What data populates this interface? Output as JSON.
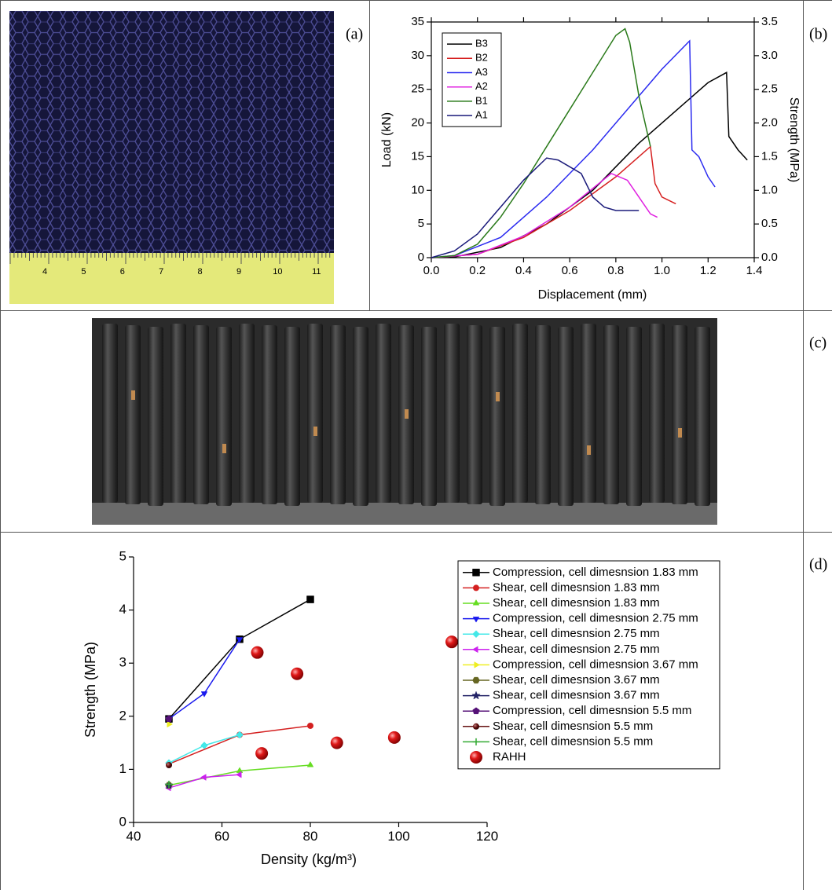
{
  "panel_labels": [
    "(a)",
    "(b)",
    "(c)",
    "(d)"
  ],
  "ruler_labels": [
    "4",
    "5",
    "6",
    "7",
    "8",
    "9",
    "10",
    "11"
  ],
  "chart_data": [
    {
      "type": "line",
      "xlabel": "Displacement (mm)",
      "ylabel": "Load (kN)",
      "y2label": "Strength (MPa)",
      "xlim": [
        0,
        1.4
      ],
      "xticks": [
        {
          "value": 0,
          "label": "0.0"
        },
        0.2,
        0.4,
        0.6,
        0.8,
        {
          "value": 1,
          "label": "1.0"
        },
        1.2,
        1.4
      ],
      "ylim": [
        0,
        35
      ],
      "yticks": [
        0,
        5,
        10,
        15,
        20,
        25,
        30,
        35
      ],
      "y2lim": [
        0,
        3.5
      ],
      "y2ticks": [
        {
          "value": 0,
          "label": "0.0"
        },
        0.5,
        {
          "value": 1,
          "label": "1.0"
        },
        1.5,
        {
          "value": 2,
          "label": "2.0"
        },
        2.5,
        {
          "value": 3,
          "label": "3.0"
        },
        3.5
      ],
      "box": true,
      "legend": "upper left",
      "series": [
        {
          "name": "B3",
          "color": "#000000",
          "x": [
            0,
            0.1,
            0.3,
            0.5,
            0.7,
            0.9,
            1.0,
            1.1,
            1.2,
            1.28,
            1.29,
            1.33,
            1.37
          ],
          "values": [
            0,
            0.1,
            1.5,
            5,
            10,
            17,
            20,
            23,
            26,
            27.5,
            18,
            16,
            14.5
          ]
        },
        {
          "name": "B2",
          "color": "#d62020",
          "x": [
            0,
            0.2,
            0.4,
            0.6,
            0.8,
            0.9,
            0.95,
            0.97,
            1.0,
            1.06
          ],
          "values": [
            0,
            0.5,
            3,
            7,
            12,
            15,
            16.5,
            11,
            9,
            8
          ]
        },
        {
          "name": "A3",
          "color": "#2a2af0",
          "x": [
            0,
            0.1,
            0.3,
            0.5,
            0.7,
            0.9,
            1.0,
            1.1,
            1.12,
            1.13,
            1.16,
            1.2,
            1.23
          ],
          "values": [
            0,
            0.3,
            3,
            9,
            16,
            24,
            28,
            31.5,
            32.2,
            16,
            15,
            12,
            10.5
          ]
        },
        {
          "name": "A2",
          "color": "#e020e0",
          "x": [
            0,
            0.2,
            0.4,
            0.6,
            0.78,
            0.85,
            0.9,
            0.95,
            0.98
          ],
          "values": [
            0,
            0.5,
            3.2,
            7.5,
            12.5,
            11.5,
            9,
            6.5,
            6
          ]
        },
        {
          "name": "B1",
          "color": "#2a7a1a",
          "x": [
            0,
            0.1,
            0.2,
            0.3,
            0.4,
            0.5,
            0.6,
            0.7,
            0.8,
            0.84,
            0.86,
            0.9,
            0.95
          ],
          "values": [
            0,
            0.3,
            2,
            6,
            11,
            16.5,
            22,
            27.5,
            33,
            34,
            32,
            24,
            16.5
          ]
        },
        {
          "name": "A1",
          "color": "#1a1a7a",
          "x": [
            0,
            0.1,
            0.2,
            0.3,
            0.4,
            0.5,
            0.55,
            0.6,
            0.65,
            0.7,
            0.75,
            0.8,
            0.9
          ],
          "values": [
            0,
            1,
            3.5,
            7.5,
            11.5,
            14.8,
            14.5,
            13.5,
            12.5,
            9,
            7.5,
            7,
            7
          ]
        }
      ]
    },
    {
      "type": "line",
      "xlabel": "Density (kg/m³)",
      "ylabel": "Strength (MPa)",
      "xlim": [
        40,
        120
      ],
      "xticks": [
        40,
        60,
        80,
        100,
        120
      ],
      "ylim": [
        0,
        5
      ],
      "yticks": [
        0,
        1,
        2,
        3,
        4,
        5
      ],
      "box": false,
      "legend": "upper right",
      "series": [
        {
          "name": "Compression, cell dimesnsion 1.83 mm",
          "color": "#000000",
          "marker": "square",
          "x": [
            48,
            64,
            80
          ],
          "values": [
            1.95,
            3.45,
            4.2
          ]
        },
        {
          "name": "Shear, cell dimesnsion 1.83 mm",
          "color": "#d42020",
          "marker": "circle",
          "x": [
            48,
            64,
            80
          ],
          "values": [
            1.1,
            1.65,
            1.82
          ]
        },
        {
          "name": "Shear, cell dimesnsion 1.83 mm",
          "color": "#66dd22",
          "marker": "triangle-up",
          "x": [
            48,
            64,
            80
          ],
          "values": [
            0.7,
            0.97,
            1.08
          ]
        },
        {
          "name": "Compression, cell dimesnsion 2.75 mm",
          "color": "#1a1aee",
          "marker": "triangle-down",
          "x": [
            48,
            56,
            64
          ],
          "values": [
            1.95,
            2.43,
            3.45
          ]
        },
        {
          "name": "Shear, cell dimesnsion 2.75 mm",
          "color": "#44e8e8",
          "marker": "diamond",
          "x": [
            48,
            56,
            64
          ],
          "values": [
            1.12,
            1.45,
            1.65
          ]
        },
        {
          "name": "Shear, cell dimesnsion 2.75 mm",
          "color": "#cc22ee",
          "marker": "triangle-left",
          "x": [
            48,
            56,
            64
          ],
          "values": [
            0.65,
            0.85,
            0.9
          ]
        },
        {
          "name": "Compression, cell dimesnsion 3.67 mm",
          "color": "#eeee22",
          "marker": "triangle-right",
          "x": [
            48
          ],
          "values": [
            1.85
          ]
        },
        {
          "name": "Shear, cell dimesnsion 3.67 mm",
          "color": "#666622",
          "marker": "hexagon",
          "x": [
            48
          ],
          "values": [
            0.7
          ]
        },
        {
          "name": "Shear, cell dimesnsion 3.67 mm",
          "color": "#222266",
          "marker": "star",
          "x": [
            48
          ],
          "values": [
            0.7
          ]
        },
        {
          "name": "Compression, cell dimesnsion 5.5 mm",
          "color": "#551177",
          "marker": "pentagon",
          "x": [
            48
          ],
          "values": [
            1.95
          ]
        },
        {
          "name": "Shear, cell dimesnsion 5.5 mm",
          "color": "#661111",
          "marker": "dot",
          "x": [
            48
          ],
          "values": [
            1.08
          ]
        },
        {
          "name": "Shear, cell dimesnsion 5.5 mm",
          "color": "#33aa33",
          "marker": "plus",
          "x": [
            48
          ],
          "values": [
            0.72
          ]
        },
        {
          "name": "RAHH",
          "color": "#dd1111",
          "marker": "ball",
          "line": false,
          "x": [
            68,
            77,
            69,
            86,
            99,
            112
          ],
          "values": [
            3.2,
            2.8,
            1.3,
            1.5,
            1.6,
            3.4
          ]
        }
      ]
    }
  ]
}
